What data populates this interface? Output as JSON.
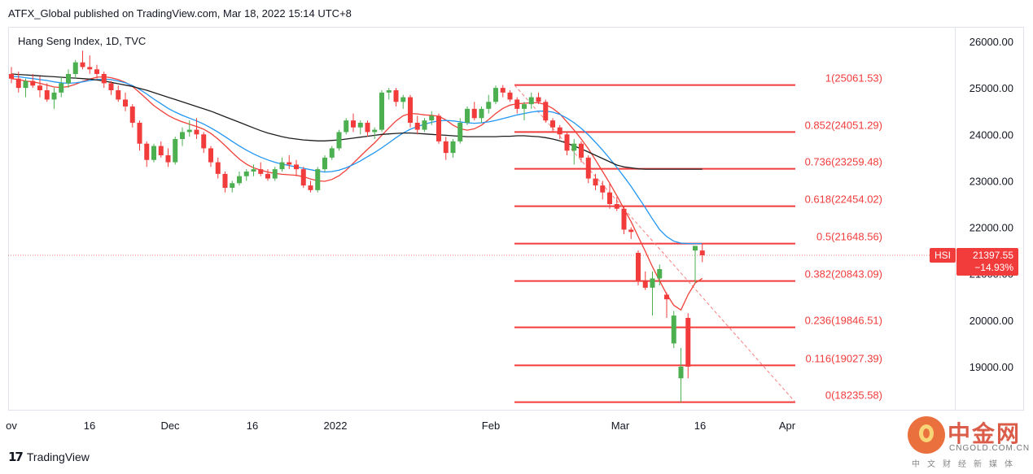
{
  "header": {
    "publisher_line": "ATFX_Global published on TradingView.com, Mar 18, 2022 15:14 UTC+8"
  },
  "footer": {
    "logo_text": "TradingView",
    "logo_mark": "17"
  },
  "brand": {
    "name": "中金网",
    "domain": "CNGOLD.COM.CN",
    "tagline": "中文财经新媒体"
  },
  "chart_data": {
    "type": "candlestick",
    "title": "Hang Seng Index, 1D, TVC",
    "symbol": "HSI",
    "last_price": "21397.55",
    "change": "−14.93%",
    "ylim": [
      17900,
      26400
    ],
    "grid": false,
    "y_ticks": [
      "26000.00",
      "25000.00",
      "24000.00",
      "23000.00",
      "22000.00",
      "21000.00",
      "20000.00",
      "19000.00"
    ],
    "x_ticks": [
      "ov",
      "16",
      "Dec",
      "16",
      "2022",
      "Feb",
      "Mar",
      "16",
      "Apr"
    ],
    "fib_levels": [
      {
        "ratio": "1",
        "value": 25061.53,
        "label": "1(25061.53)"
      },
      {
        "ratio": "0.852",
        "value": 24051.29,
        "label": "0.852(24051.29)"
      },
      {
        "ratio": "0.736",
        "value": 23259.48,
        "label": "0.736(23259.48)"
      },
      {
        "ratio": "0.618",
        "value": 22454.02,
        "label": "0.618(22454.02)"
      },
      {
        "ratio": "0.5",
        "value": 21648.56,
        "label": "0.5(21648.56)"
      },
      {
        "ratio": "0.382",
        "value": 20843.09,
        "label": "0.382(20843.09)"
      },
      {
        "ratio": "0.236",
        "value": 19846.51,
        "label": "0.236(19846.51)"
      },
      {
        "ratio": "0.116",
        "value": 19027.39,
        "label": "0.116(19027.39)"
      },
      {
        "ratio": "0",
        "value": 18235.58,
        "label": "0(18235.58)"
      }
    ],
    "candles": [
      {
        "o": 25300,
        "h": 25450,
        "l": 25100,
        "c": 25200
      },
      {
        "o": 25200,
        "h": 25350,
        "l": 24900,
        "c": 25000
      },
      {
        "o": 25000,
        "h": 25200,
        "l": 24800,
        "c": 25150
      },
      {
        "o": 25150,
        "h": 25300,
        "l": 25000,
        "c": 25050
      },
      {
        "o": 25050,
        "h": 25250,
        "l": 24800,
        "c": 24950
      },
      {
        "o": 24950,
        "h": 25100,
        "l": 24700,
        "c": 24750
      },
      {
        "o": 24750,
        "h": 25000,
        "l": 24550,
        "c": 24900
      },
      {
        "o": 24900,
        "h": 25250,
        "l": 24800,
        "c": 25100
      },
      {
        "o": 25100,
        "h": 25400,
        "l": 25000,
        "c": 25300
      },
      {
        "o": 25300,
        "h": 25600,
        "l": 25200,
        "c": 25550
      },
      {
        "o": 25550,
        "h": 25800,
        "l": 25400,
        "c": 25450
      },
      {
        "o": 25450,
        "h": 25700,
        "l": 25300,
        "c": 25400
      },
      {
        "o": 25400,
        "h": 25500,
        "l": 25200,
        "c": 25300
      },
      {
        "o": 25300,
        "h": 25350,
        "l": 25000,
        "c": 25100
      },
      {
        "o": 25100,
        "h": 25150,
        "l": 24850,
        "c": 24950
      },
      {
        "o": 24950,
        "h": 25050,
        "l": 24700,
        "c": 24750
      },
      {
        "o": 24750,
        "h": 24900,
        "l": 24500,
        "c": 24600
      },
      {
        "o": 24600,
        "h": 24650,
        "l": 24150,
        "c": 24250
      },
      {
        "o": 24250,
        "h": 24300,
        "l": 23650,
        "c": 23800
      },
      {
        "o": 23800,
        "h": 23850,
        "l": 23300,
        "c": 23450
      },
      {
        "o": 23450,
        "h": 23800,
        "l": 23400,
        "c": 23750
      },
      {
        "o": 23750,
        "h": 23850,
        "l": 23500,
        "c": 23550
      },
      {
        "o": 23550,
        "h": 23700,
        "l": 23300,
        "c": 23400
      },
      {
        "o": 23400,
        "h": 23950,
        "l": 23350,
        "c": 23900
      },
      {
        "o": 23900,
        "h": 24150,
        "l": 23750,
        "c": 24050
      },
      {
        "o": 24050,
        "h": 24300,
        "l": 23950,
        "c": 24100
      },
      {
        "o": 24100,
        "h": 24350,
        "l": 23900,
        "c": 24000
      },
      {
        "o": 24000,
        "h": 24050,
        "l": 23600,
        "c": 23700
      },
      {
        "o": 23700,
        "h": 23750,
        "l": 23300,
        "c": 23400
      },
      {
        "o": 23400,
        "h": 23500,
        "l": 23050,
        "c": 23150
      },
      {
        "o": 23150,
        "h": 23200,
        "l": 22750,
        "c": 22850
      },
      {
        "o": 22850,
        "h": 23000,
        "l": 22750,
        "c": 22950
      },
      {
        "o": 22950,
        "h": 23200,
        "l": 22900,
        "c": 23100
      },
      {
        "o": 23100,
        "h": 23250,
        "l": 23000,
        "c": 23200
      },
      {
        "o": 23200,
        "h": 23350,
        "l": 23100,
        "c": 23250
      },
      {
        "o": 23250,
        "h": 23400,
        "l": 23100,
        "c": 23150
      },
      {
        "o": 23150,
        "h": 23250,
        "l": 23000,
        "c": 23050
      },
      {
        "o": 23050,
        "h": 23300,
        "l": 23000,
        "c": 23250
      },
      {
        "o": 23250,
        "h": 23500,
        "l": 23200,
        "c": 23400
      },
      {
        "o": 23400,
        "h": 23550,
        "l": 23250,
        "c": 23350
      },
      {
        "o": 23350,
        "h": 23450,
        "l": 23100,
        "c": 23250
      },
      {
        "o": 23250,
        "h": 23300,
        "l": 22850,
        "c": 22900
      },
      {
        "o": 22900,
        "h": 23000,
        "l": 22750,
        "c": 22800
      },
      {
        "o": 22800,
        "h": 23300,
        "l": 22750,
        "c": 23250
      },
      {
        "o": 23250,
        "h": 23550,
        "l": 23200,
        "c": 23500
      },
      {
        "o": 23500,
        "h": 23750,
        "l": 23450,
        "c": 23700
      },
      {
        "o": 23700,
        "h": 24100,
        "l": 23650,
        "c": 24050
      },
      {
        "o": 24050,
        "h": 24350,
        "l": 24000,
        "c": 24300
      },
      {
        "o": 24300,
        "h": 24450,
        "l": 24050,
        "c": 24150
      },
      {
        "o": 24150,
        "h": 24300,
        "l": 24000,
        "c": 24250
      },
      {
        "o": 24250,
        "h": 24300,
        "l": 23950,
        "c": 24050
      },
      {
        "o": 24050,
        "h": 24150,
        "l": 23900,
        "c": 24100
      },
      {
        "o": 24100,
        "h": 24950,
        "l": 24050,
        "c": 24900
      },
      {
        "o": 24900,
        "h": 25000,
        "l": 24750,
        "c": 24950
      },
      {
        "o": 24950,
        "h": 25000,
        "l": 24600,
        "c": 24700
      },
      {
        "o": 24700,
        "h": 24850,
        "l": 24550,
        "c": 24800
      },
      {
        "o": 24800,
        "h": 24850,
        "l": 24150,
        "c": 24250
      },
      {
        "o": 24250,
        "h": 24400,
        "l": 24000,
        "c": 24100
      },
      {
        "o": 24100,
        "h": 24350,
        "l": 24050,
        "c": 24300
      },
      {
        "o": 24300,
        "h": 24500,
        "l": 24200,
        "c": 24400
      },
      {
        "o": 24400,
        "h": 24450,
        "l": 23800,
        "c": 23850
      },
      {
        "o": 23850,
        "h": 23950,
        "l": 23450,
        "c": 23600
      },
      {
        "o": 23600,
        "h": 23900,
        "l": 23500,
        "c": 23850
      },
      {
        "o": 23850,
        "h": 24350,
        "l": 23800,
        "c": 24250
      },
      {
        "o": 24250,
        "h": 24600,
        "l": 24200,
        "c": 24550
      },
      {
        "o": 24550,
        "h": 24700,
        "l": 24300,
        "c": 24350
      },
      {
        "o": 24350,
        "h": 24600,
        "l": 24250,
        "c": 24550
      },
      {
        "o": 24550,
        "h": 24850,
        "l": 24450,
        "c": 24700
      },
      {
        "o": 24700,
        "h": 25050,
        "l": 24650,
        "c": 25000
      },
      {
        "o": 25000,
        "h": 25061,
        "l": 24800,
        "c": 24900
      },
      {
        "o": 24900,
        "h": 24950,
        "l": 24700,
        "c": 24750
      },
      {
        "o": 24750,
        "h": 24800,
        "l": 24450,
        "c": 24550
      },
      {
        "o": 24550,
        "h": 24700,
        "l": 24300,
        "c": 24650
      },
      {
        "o": 24650,
        "h": 24900,
        "l": 24550,
        "c": 24800
      },
      {
        "o": 24800,
        "h": 24900,
        "l": 24650,
        "c": 24700
      },
      {
        "o": 24700,
        "h": 24750,
        "l": 24250,
        "c": 24300
      },
      {
        "o": 24300,
        "h": 24350,
        "l": 24050,
        "c": 24150
      },
      {
        "o": 24150,
        "h": 24200,
        "l": 23900,
        "c": 24000
      },
      {
        "o": 24000,
        "h": 24050,
        "l": 23550,
        "c": 23650
      },
      {
        "o": 23650,
        "h": 23900,
        "l": 23350,
        "c": 23800
      },
      {
        "o": 23800,
        "h": 23850,
        "l": 23400,
        "c": 23500
      },
      {
        "o": 23500,
        "h": 23550,
        "l": 22950,
        "c": 23050
      },
      {
        "o": 23050,
        "h": 23150,
        "l": 22800,
        "c": 22900
      },
      {
        "o": 22900,
        "h": 23000,
        "l": 22600,
        "c": 22750
      },
      {
        "o": 22750,
        "h": 22950,
        "l": 22400,
        "c": 22500
      },
      {
        "o": 22500,
        "h": 22650,
        "l": 22350,
        "c": 22400
      },
      {
        "o": 22400,
        "h": 22450,
        "l": 21850,
        "c": 21950
      },
      {
        "o": 21950,
        "h": 22000,
        "l": 21750,
        "c": 21900
      },
      {
        "o": 21450,
        "h": 21500,
        "l": 20750,
        "c": 20850
      },
      {
        "o": 20850,
        "h": 21050,
        "l": 20650,
        "c": 20700
      },
      {
        "o": 20700,
        "h": 21050,
        "l": 20100,
        "c": 20900
      },
      {
        "o": 20900,
        "h": 21200,
        "l": 20750,
        "c": 21100
      },
      {
        "o": 20550,
        "h": 20600,
        "l": 20050,
        "c": 20450
      },
      {
        "o": 19500,
        "h": 20200,
        "l": 19400,
        "c": 20100
      },
      {
        "o": 18750,
        "h": 19400,
        "l": 18235,
        "c": 19000
      },
      {
        "o": 20050,
        "h": 20150,
        "l": 18750,
        "c": 19000
      },
      {
        "o": 21500,
        "h": 21550,
        "l": 20800,
        "c": 21600
      },
      {
        "o": 21500,
        "h": 21660,
        "l": 21250,
        "c": 21397
      }
    ],
    "series": [
      {
        "name": "",
        "color": "#f0413a",
        "values": [
          25200,
          25180,
          25150,
          25130,
          25100,
          25060,
          25020,
          25010,
          25030,
          25080,
          25140,
          25190,
          25230,
          25240,
          25220,
          25180,
          25120,
          25030,
          24900,
          24760,
          24620,
          24510,
          24410,
          24330,
          24270,
          24220,
          24170,
          24110,
          24020,
          23900,
          23760,
          23610,
          23470,
          23360,
          23280,
          23230,
          23190,
          23160,
          23140,
          23130,
          23120,
          23090,
          23040,
          23000,
          22990,
          23030,
          23110,
          23230,
          23380,
          23530,
          23680,
          23820,
          23980,
          24140,
          24290,
          24400,
          24450,
          24440,
          24420,
          24410,
          24390,
          24310,
          24200,
          24120,
          24090,
          24120,
          24200,
          24320,
          24450,
          24560,
          24630,
          24660,
          24670,
          24680,
          24680,
          24640,
          24560,
          24440,
          24270,
          24090,
          23900,
          23690,
          23450,
          23200,
          22950,
          22680,
          22400,
          22120,
          21800,
          21480,
          21150,
          20850,
          20560,
          20320,
          20220,
          20550,
          20800,
          20900
        ]
      },
      {
        "name": "",
        "color": "#2196f3",
        "values": [
          25250,
          25240,
          25220,
          25200,
          25180,
          25160,
          25130,
          25110,
          25100,
          25110,
          25130,
          25160,
          25180,
          25190,
          25180,
          25150,
          25110,
          25050,
          24970,
          24870,
          24760,
          24660,
          24560,
          24480,
          24410,
          24350,
          24290,
          24220,
          24140,
          24050,
          23950,
          23850,
          23750,
          23660,
          23580,
          23510,
          23450,
          23400,
          23360,
          23330,
          23300,
          23270,
          23240,
          23210,
          23190,
          23200,
          23230,
          23280,
          23350,
          23430,
          23520,
          23610,
          23710,
          23820,
          23930,
          24030,
          24110,
          24170,
          24220,
          24260,
          24290,
          24300,
          24290,
          24270,
          24250,
          24240,
          24250,
          24270,
          24300,
          24340,
          24380,
          24420,
          24450,
          24480,
          24500,
          24500,
          24480,
          24430,
          24350,
          24250,
          24130,
          23990,
          23830,
          23660,
          23480,
          23290,
          23090,
          22880,
          22650,
          22420,
          22180,
          21950,
          21800,
          21700,
          21660,
          21650,
          21650,
          21650
        ]
      },
      {
        "name": "",
        "color": "#1e1e1e",
        "values": [
          25300,
          25290,
          25280,
          25270,
          25260,
          25250,
          25240,
          25230,
          25220,
          25210,
          25200,
          25190,
          25170,
          25150,
          25120,
          25090,
          25060,
          25030,
          24990,
          24950,
          24900,
          24850,
          24800,
          24750,
          24700,
          24650,
          24600,
          24550,
          24500,
          24440,
          24380,
          24320,
          24260,
          24200,
          24140,
          24080,
          24030,
          23990,
          23950,
          23920,
          23900,
          23880,
          23870,
          23860,
          23860,
          23870,
          23880,
          23900,
          23920,
          23940,
          23960,
          23980,
          24000,
          24010,
          24020,
          24030,
          24030,
          24020,
          24010,
          24000,
          23990,
          23980,
          23970,
          23960,
          23950,
          23950,
          23950,
          23950,
          23950,
          23960,
          23960,
          23970,
          23970,
          23960,
          23950,
          23930,
          23900,
          23860,
          23810,
          23750,
          23690,
          23620,
          23550,
          23480,
          23410,
          23340,
          23300,
          23280,
          23260,
          23250,
          23250,
          23250,
          23250,
          23250,
          23250,
          23250,
          23250,
          23250
        ]
      }
    ]
  }
}
